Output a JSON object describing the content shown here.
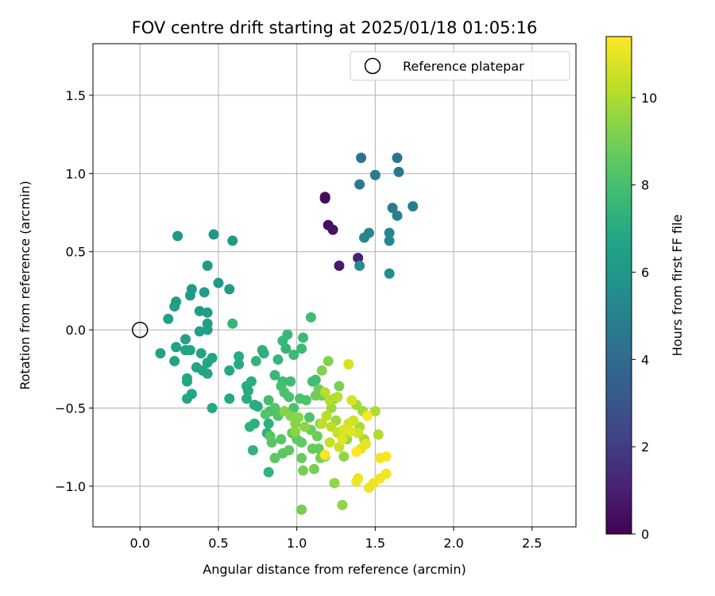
{
  "chart_data": {
    "type": "scatter",
    "title": "FOV centre drift starting at 2025/01/18 01:05:16",
    "xlabel": "Angular distance from reference (arcmin)",
    "ylabel": "Rotation from reference (arcmin)",
    "xlim": [
      -0.3,
      2.78
    ],
    "ylim": [
      -1.26,
      1.83
    ],
    "xticks": [
      "0.0",
      "0.5",
      "1.0",
      "1.5",
      "2.0",
      "2.5"
    ],
    "xtick_values": [
      0,
      0.5,
      1.0,
      1.5,
      2.0,
      2.5
    ],
    "yticks": [
      "1.5",
      "1.0",
      "0.5",
      "0.0",
      "−0.5",
      "−1.0"
    ],
    "ytick_values": [
      1.5,
      1.0,
      0.5,
      0.0,
      -0.5,
      -1.0
    ],
    "grid": true,
    "legend": {
      "placement": "top-right",
      "entries": [
        "Reference platepar"
      ]
    },
    "reference_point": {
      "x": 0.0,
      "y": 0.0
    },
    "colorbar": {
      "label": "Hours from first FF file",
      "colormap": "viridis",
      "range": [
        0,
        11.4
      ],
      "ticks": [
        "0",
        "2",
        "4",
        "6",
        "8",
        "10"
      ],
      "tick_values": [
        0,
        2,
        4,
        6,
        8,
        10
      ]
    },
    "points": [
      {
        "x": 1.18,
        "y": 0.85,
        "h": 0.2
      },
      {
        "x": 1.18,
        "y": 0.84,
        "h": 0.3
      },
      {
        "x": 1.2,
        "y": 0.67,
        "h": 0.5
      },
      {
        "x": 1.23,
        "y": 0.64,
        "h": 0.6
      },
      {
        "x": 1.27,
        "y": 0.41,
        "h": 0.8
      },
      {
        "x": 1.39,
        "y": 0.46,
        "h": 1.0
      },
      {
        "x": 1.41,
        "y": 1.1,
        "h": 4.3
      },
      {
        "x": 1.64,
        "y": 1.1,
        "h": 4.4
      },
      {
        "x": 1.65,
        "y": 1.01,
        "h": 4.5
      },
      {
        "x": 1.5,
        "y": 0.99,
        "h": 4.6
      },
      {
        "x": 1.4,
        "y": 0.93,
        "h": 4.7
      },
      {
        "x": 1.61,
        "y": 0.78,
        "h": 4.8
      },
      {
        "x": 1.74,
        "y": 0.79,
        "h": 4.9
      },
      {
        "x": 1.64,
        "y": 0.73,
        "h": 5.0
      },
      {
        "x": 1.46,
        "y": 0.62,
        "h": 5.1
      },
      {
        "x": 1.43,
        "y": 0.59,
        "h": 5.2
      },
      {
        "x": 1.59,
        "y": 0.62,
        "h": 5.3
      },
      {
        "x": 1.59,
        "y": 0.57,
        "h": 5.4
      },
      {
        "x": 1.4,
        "y": 0.41,
        "h": 5.5
      },
      {
        "x": 1.59,
        "y": 0.36,
        "h": 5.6
      },
      {
        "x": 0.24,
        "y": 0.6,
        "h": 6.0
      },
      {
        "x": 0.47,
        "y": 0.61,
        "h": 6.0
      },
      {
        "x": 0.59,
        "y": 0.57,
        "h": 6.1
      },
      {
        "x": 0.43,
        "y": 0.41,
        "h": 6.1
      },
      {
        "x": 0.5,
        "y": 0.3,
        "h": 6.1
      },
      {
        "x": 0.57,
        "y": 0.26,
        "h": 6.2
      },
      {
        "x": 0.33,
        "y": 0.26,
        "h": 6.2
      },
      {
        "x": 0.41,
        "y": 0.24,
        "h": 6.2
      },
      {
        "x": 0.32,
        "y": 0.22,
        "h": 6.2
      },
      {
        "x": 0.23,
        "y": 0.18,
        "h": 6.3
      },
      {
        "x": 0.22,
        "y": 0.15,
        "h": 6.3
      },
      {
        "x": 0.38,
        "y": 0.12,
        "h": 6.3
      },
      {
        "x": 0.43,
        "y": 0.11,
        "h": 6.3
      },
      {
        "x": 0.18,
        "y": 0.07,
        "h": 6.4
      },
      {
        "x": 0.43,
        "y": 0.04,
        "h": 6.4
      },
      {
        "x": 0.43,
        "y": 0.0,
        "h": 6.4
      },
      {
        "x": 0.38,
        "y": -0.01,
        "h": 6.4
      },
      {
        "x": 0.13,
        "y": -0.15,
        "h": 6.5
      },
      {
        "x": 0.23,
        "y": -0.11,
        "h": 6.5
      },
      {
        "x": 0.29,
        "y": -0.06,
        "h": 6.5
      },
      {
        "x": 0.29,
        "y": -0.13,
        "h": 6.5
      },
      {
        "x": 0.32,
        "y": -0.13,
        "h": 6.6
      },
      {
        "x": 0.39,
        "y": -0.15,
        "h": 6.6
      },
      {
        "x": 0.46,
        "y": -0.18,
        "h": 6.6
      },
      {
        "x": 0.22,
        "y": -0.2,
        "h": 6.6
      },
      {
        "x": 0.43,
        "y": -0.21,
        "h": 6.7
      },
      {
        "x": 0.36,
        "y": -0.24,
        "h": 6.7
      },
      {
        "x": 0.4,
        "y": -0.26,
        "h": 6.7
      },
      {
        "x": 0.43,
        "y": -0.28,
        "h": 6.7
      },
      {
        "x": 0.3,
        "y": -0.31,
        "h": 6.8
      },
      {
        "x": 0.3,
        "y": -0.33,
        "h": 6.8
      },
      {
        "x": 0.33,
        "y": -0.41,
        "h": 6.8
      },
      {
        "x": 0.3,
        "y": -0.44,
        "h": 6.8
      },
      {
        "x": 0.46,
        "y": -0.5,
        "h": 6.9
      },
      {
        "x": 0.57,
        "y": -0.44,
        "h": 6.9
      },
      {
        "x": 0.57,
        "y": -0.26,
        "h": 6.9
      },
      {
        "x": 0.63,
        "y": -0.17,
        "h": 7.0
      },
      {
        "x": 0.63,
        "y": -0.22,
        "h": 7.0
      },
      {
        "x": 0.68,
        "y": -0.36,
        "h": 7.0
      },
      {
        "x": 0.69,
        "y": -0.39,
        "h": 7.0
      },
      {
        "x": 0.68,
        "y": -0.44,
        "h": 7.1
      },
      {
        "x": 0.71,
        "y": -0.33,
        "h": 7.1
      },
      {
        "x": 0.73,
        "y": -0.48,
        "h": 7.1
      },
      {
        "x": 0.75,
        "y": -0.49,
        "h": 7.1
      },
      {
        "x": 0.78,
        "y": -0.13,
        "h": 7.2
      },
      {
        "x": 0.79,
        "y": -0.15,
        "h": 7.2
      },
      {
        "x": 0.73,
        "y": -0.6,
        "h": 7.2
      },
      {
        "x": 0.7,
        "y": -0.62,
        "h": 7.3
      },
      {
        "x": 0.82,
        "y": -0.6,
        "h": 7.3
      },
      {
        "x": 0.81,
        "y": -0.66,
        "h": 7.3
      },
      {
        "x": 0.72,
        "y": -0.77,
        "h": 7.4
      },
      {
        "x": 0.82,
        "y": -0.91,
        "h": 7.4
      },
      {
        "x": 0.74,
        "y": -0.2,
        "h": 7.4
      },
      {
        "x": 0.59,
        "y": 0.04,
        "h": 7.5
      },
      {
        "x": 0.88,
        "y": -0.19,
        "h": 7.5
      },
      {
        "x": 0.93,
        "y": -0.12,
        "h": 7.5
      },
      {
        "x": 0.86,
        "y": -0.29,
        "h": 7.6
      },
      {
        "x": 0.91,
        "y": -0.07,
        "h": 7.6
      },
      {
        "x": 0.94,
        "y": -0.03,
        "h": 7.6
      },
      {
        "x": 0.98,
        "y": -0.16,
        "h": 7.7
      },
      {
        "x": 1.04,
        "y": -0.05,
        "h": 7.7
      },
      {
        "x": 1.03,
        "y": -0.12,
        "h": 7.7
      },
      {
        "x": 1.09,
        "y": 0.08,
        "h": 7.8
      },
      {
        "x": 0.91,
        "y": -0.33,
        "h": 7.8
      },
      {
        "x": 0.96,
        "y": -0.33,
        "h": 7.8
      },
      {
        "x": 1.12,
        "y": -0.32,
        "h": 7.9
      },
      {
        "x": 1.1,
        "y": -0.33,
        "h": 7.9
      },
      {
        "x": 0.82,
        "y": -0.45,
        "h": 8.0
      },
      {
        "x": 0.83,
        "y": -0.52,
        "h": 8.0
      },
      {
        "x": 0.9,
        "y": -0.36,
        "h": 8.0
      },
      {
        "x": 0.92,
        "y": -0.4,
        "h": 8.1
      },
      {
        "x": 0.95,
        "y": -0.43,
        "h": 8.1
      },
      {
        "x": 0.98,
        "y": -0.5,
        "h": 8.1
      },
      {
        "x": 1.02,
        "y": -0.44,
        "h": 8.2
      },
      {
        "x": 1.06,
        "y": -0.45,
        "h": 8.2
      },
      {
        "x": 1.08,
        "y": -0.56,
        "h": 8.2
      },
      {
        "x": 0.86,
        "y": -0.5,
        "h": 8.3
      },
      {
        "x": 0.88,
        "y": -0.55,
        "h": 8.3
      },
      {
        "x": 0.8,
        "y": -0.54,
        "h": 8.3
      },
      {
        "x": 0.83,
        "y": -0.68,
        "h": 8.4
      },
      {
        "x": 0.84,
        "y": -0.72,
        "h": 8.4
      },
      {
        "x": 0.9,
        "y": -0.7,
        "h": 8.4
      },
      {
        "x": 0.91,
        "y": -0.79,
        "h": 8.5
      },
      {
        "x": 0.95,
        "y": -0.77,
        "h": 8.5
      },
      {
        "x": 0.86,
        "y": -0.82,
        "h": 8.5
      },
      {
        "x": 0.97,
        "y": -0.66,
        "h": 8.6
      },
      {
        "x": 1.0,
        "y": -0.7,
        "h": 8.6
      },
      {
        "x": 1.03,
        "y": -0.72,
        "h": 8.6
      },
      {
        "x": 1.03,
        "y": -0.82,
        "h": 8.7
      },
      {
        "x": 1.1,
        "y": -0.76,
        "h": 8.7
      },
      {
        "x": 1.14,
        "y": -0.76,
        "h": 8.7
      },
      {
        "x": 1.09,
        "y": -0.64,
        "h": 8.8
      },
      {
        "x": 1.13,
        "y": -0.68,
        "h": 8.8
      },
      {
        "x": 1.15,
        "y": -0.6,
        "h": 8.8
      },
      {
        "x": 1.12,
        "y": -0.42,
        "h": 8.9
      },
      {
        "x": 1.14,
        "y": -0.38,
        "h": 8.9
      },
      {
        "x": 1.16,
        "y": -0.42,
        "h": 8.9
      },
      {
        "x": 1.04,
        "y": -0.9,
        "h": 9.0
      },
      {
        "x": 1.11,
        "y": -0.89,
        "h": 9.0
      },
      {
        "x": 1.03,
        "y": -1.15,
        "h": 9.0
      },
      {
        "x": 1.15,
        "y": -0.82,
        "h": 9.1
      },
      {
        "x": 1.18,
        "y": -0.81,
        "h": 9.1
      },
      {
        "x": 1.27,
        "y": -0.36,
        "h": 9.1
      },
      {
        "x": 1.24,
        "y": -0.44,
        "h": 9.2
      },
      {
        "x": 1.16,
        "y": -0.26,
        "h": 9.2
      },
      {
        "x": 1.2,
        "y": -0.2,
        "h": 9.2
      },
      {
        "x": 0.92,
        "y": -0.52,
        "h": 9.3
      },
      {
        "x": 0.96,
        "y": -0.55,
        "h": 9.3
      },
      {
        "x": 0.99,
        "y": -0.6,
        "h": 9.3
      },
      {
        "x": 1.01,
        "y": -0.56,
        "h": 9.4
      },
      {
        "x": 1.05,
        "y": -0.62,
        "h": 9.4
      },
      {
        "x": 0.99,
        "y": -0.65,
        "h": 9.4
      },
      {
        "x": 1.29,
        "y": -1.12,
        "h": 9.5
      },
      {
        "x": 1.24,
        "y": -0.98,
        "h": 9.5
      },
      {
        "x": 1.3,
        "y": -0.81,
        "h": 9.5
      },
      {
        "x": 1.32,
        "y": -0.7,
        "h": 9.6
      },
      {
        "x": 1.28,
        "y": -0.65,
        "h": 9.6
      },
      {
        "x": 1.25,
        "y": -0.58,
        "h": 9.7
      },
      {
        "x": 1.22,
        "y": -0.5,
        "h": 9.7
      },
      {
        "x": 1.38,
        "y": -0.48,
        "h": 9.8
      },
      {
        "x": 1.42,
        "y": -0.52,
        "h": 9.8
      },
      {
        "x": 1.4,
        "y": -0.62,
        "h": 9.9
      },
      {
        "x": 1.43,
        "y": -0.7,
        "h": 9.9
      },
      {
        "x": 1.5,
        "y": -0.52,
        "h": 10.0
      },
      {
        "x": 1.52,
        "y": -0.67,
        "h": 10.0
      },
      {
        "x": 1.18,
        "y": -0.4,
        "h": 10.1
      },
      {
        "x": 1.21,
        "y": -0.45,
        "h": 10.1
      },
      {
        "x": 1.26,
        "y": -0.43,
        "h": 10.2
      },
      {
        "x": 1.19,
        "y": -0.55,
        "h": 10.2
      },
      {
        "x": 1.16,
        "y": -0.6,
        "h": 10.3
      },
      {
        "x": 1.22,
        "y": -0.62,
        "h": 10.3
      },
      {
        "x": 1.26,
        "y": -0.66,
        "h": 10.4
      },
      {
        "x": 1.21,
        "y": -0.72,
        "h": 10.4
      },
      {
        "x": 1.27,
        "y": -0.75,
        "h": 10.5
      },
      {
        "x": 1.33,
        "y": -0.6,
        "h": 10.5
      },
      {
        "x": 1.36,
        "y": -0.58,
        "h": 10.6
      },
      {
        "x": 1.39,
        "y": -0.66,
        "h": 10.6
      },
      {
        "x": 1.33,
        "y": -0.22,
        "h": 10.7
      },
      {
        "x": 1.35,
        "y": -0.45,
        "h": 10.7
      },
      {
        "x": 1.3,
        "y": -0.64,
        "h": 10.8
      },
      {
        "x": 1.32,
        "y": -0.63,
        "h": 10.8
      },
      {
        "x": 1.34,
        "y": -0.65,
        "h": 10.9
      },
      {
        "x": 1.29,
        "y": -0.7,
        "h": 10.9
      },
      {
        "x": 1.41,
        "y": -0.76,
        "h": 11.0
      },
      {
        "x": 1.44,
        "y": -0.73,
        "h": 11.0
      },
      {
        "x": 1.39,
        "y": -0.95,
        "h": 11.0
      },
      {
        "x": 1.38,
        "y": -0.97,
        "h": 11.1
      },
      {
        "x": 1.46,
        "y": -1.01,
        "h": 11.1
      },
      {
        "x": 1.49,
        "y": -0.98,
        "h": 11.1
      },
      {
        "x": 1.53,
        "y": -0.95,
        "h": 11.2
      },
      {
        "x": 1.57,
        "y": -0.92,
        "h": 11.2
      },
      {
        "x": 1.53,
        "y": -0.82,
        "h": 11.2
      },
      {
        "x": 1.57,
        "y": -0.81,
        "h": 11.3
      },
      {
        "x": 1.18,
        "y": -0.8,
        "h": 11.3
      },
      {
        "x": 1.45,
        "y": -0.55,
        "h": 11.3
      },
      {
        "x": 1.38,
        "y": -0.78,
        "h": 11.4
      }
    ]
  }
}
